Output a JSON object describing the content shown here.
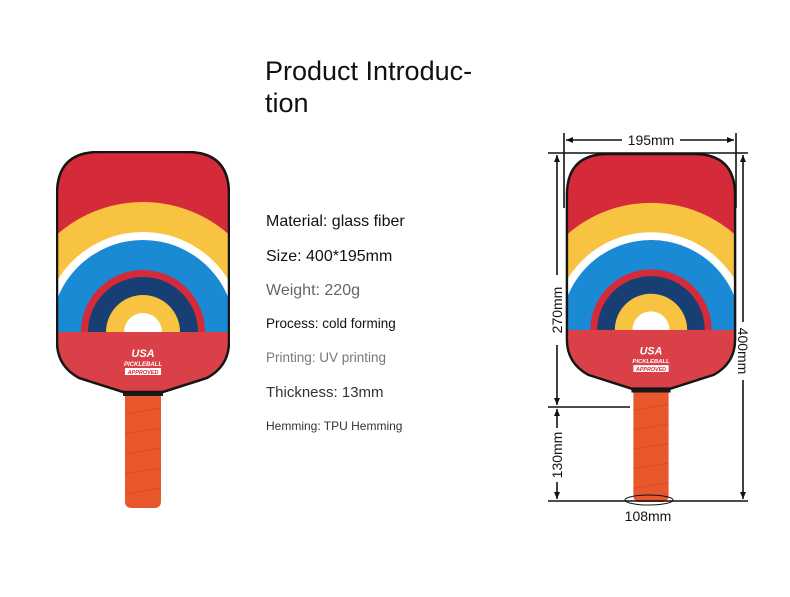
{
  "title": {
    "line1": "Product Introduc-",
    "line2": "tion"
  },
  "specs": [
    {
      "text": "Material: glass fiber",
      "color": "#111111"
    },
    {
      "text": "Size: 400*195mm",
      "color": "#111111"
    },
    {
      "text": "Weight: 220g",
      "color": "#666666"
    },
    {
      "text": "Process: cold forming",
      "color": "#111111"
    },
    {
      "text": "Printing: UV printing",
      "color": "#777777"
    },
    {
      "text": "Thickness: 13mm",
      "color": "#333333"
    },
    {
      "text": "Hemming: TPU Hemming",
      "color": "#333333"
    }
  ],
  "paddle_logo": {
    "line1": "USA",
    "line2": "PICKLEBALL",
    "line3": "APPROVED"
  },
  "dimensions": {
    "width": "195mm",
    "face_height": "270mm",
    "total_length": "400mm",
    "handle_length": "130mm",
    "handle_circumference": "108mm"
  },
  "colors": {
    "red": "#d42a3a",
    "yellow": "#f7c340",
    "blue": "#1a8ad4",
    "navy": "#173f73",
    "handle": "#e8582c"
  }
}
